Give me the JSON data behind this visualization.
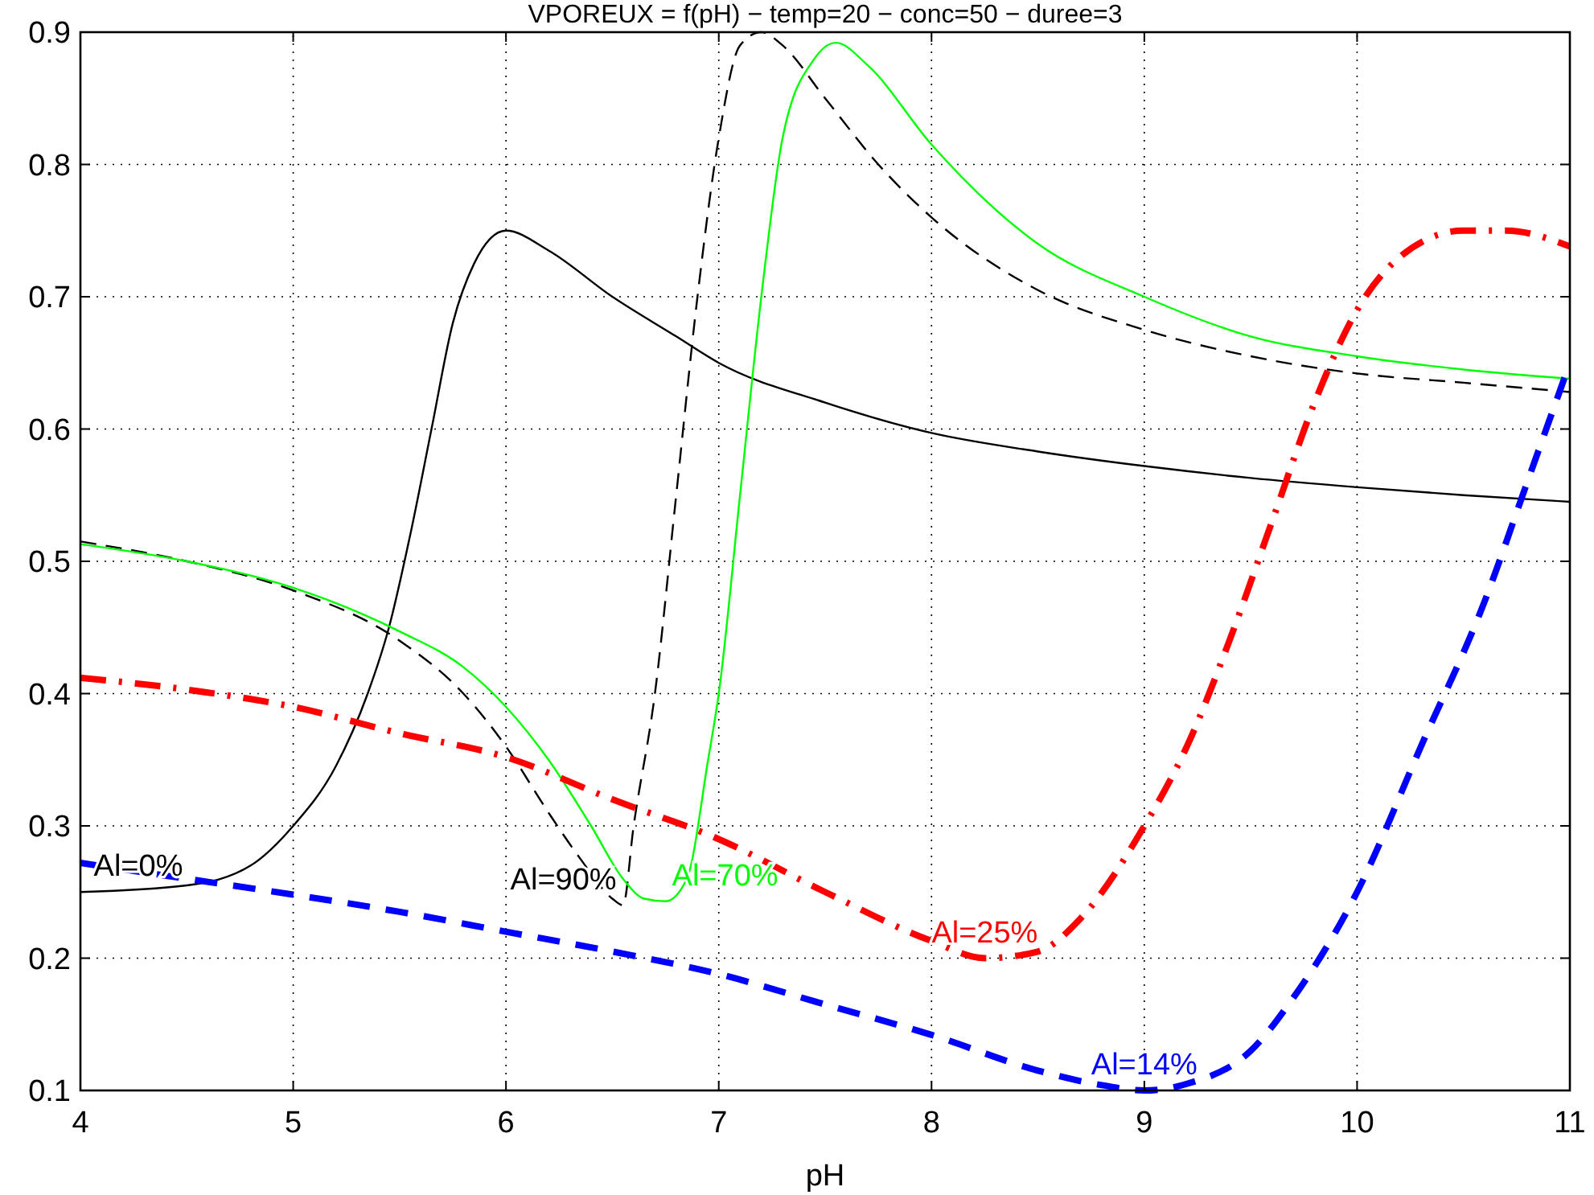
{
  "chart_data": {
    "type": "line",
    "title": "VPOREUX = f(pH) − temp=20 − conc=50 − duree=3",
    "xlabel": "pH",
    "xlim": [
      4,
      11
    ],
    "xticks": [
      4,
      5,
      6,
      7,
      8,
      9,
      10,
      11
    ],
    "ylim": [
      0.1,
      0.9
    ],
    "yticks": [
      0.1,
      0.2,
      0.3,
      0.4,
      0.5,
      0.6,
      0.7,
      0.8,
      0.9
    ],
    "grid": true,
    "marker": "none",
    "series": [
      {
        "color": "#000000",
        "line_style": "solid",
        "x": [
          4,
          4.5,
          4.8,
          5,
          5.2,
          5.35,
          5.45,
          5.55,
          5.65,
          5.75,
          5.85,
          6,
          6.2,
          6.5,
          6.8,
          7,
          7.5,
          8,
          8.5,
          9,
          9.5,
          10,
          10.5,
          11
        ],
        "values": [
          0.25,
          0.255,
          0.27,
          0.3,
          0.345,
          0.4,
          0.45,
          0.52,
          0.6,
          0.68,
          0.725,
          0.75,
          0.735,
          0.7,
          0.67,
          0.65,
          0.62,
          0.597,
          0.583,
          0.572,
          0.563,
          0.556,
          0.55,
          0.545
        ]
      },
      {
        "color": "#000000",
        "line_style": "dashed",
        "x": [
          4,
          4.5,
          5,
          5.5,
          5.8,
          6,
          6.2,
          6.35,
          6.5,
          6.55,
          6.6,
          6.7,
          6.8,
          6.9,
          7,
          7.1,
          7.2,
          7.3,
          7.5,
          7.75,
          8,
          8.5,
          9,
          9.5,
          10,
          10.5,
          11
        ],
        "values": [
          0.515,
          0.5,
          0.478,
          0.44,
          0.4,
          0.36,
          0.31,
          0.275,
          0.245,
          0.24,
          0.3,
          0.4,
          0.55,
          0.7,
          0.82,
          0.89,
          0.9,
          0.89,
          0.85,
          0.8,
          0.76,
          0.705,
          0.675,
          0.655,
          0.642,
          0.635,
          0.628
        ]
      },
      {
        "color": "#00ff00",
        "line_style": "solid",
        "x": [
          4,
          4.5,
          5,
          5.5,
          5.8,
          6,
          6.2,
          6.4,
          6.55,
          6.65,
          6.75,
          6.85,
          6.95,
          7,
          7.1,
          7.2,
          7.3,
          7.45,
          7.55,
          7.7,
          8,
          8.5,
          9,
          9.5,
          10,
          10.5,
          11
        ],
        "values": [
          0.513,
          0.5,
          0.48,
          0.447,
          0.42,
          0.39,
          0.35,
          0.3,
          0.26,
          0.245,
          0.243,
          0.26,
          0.35,
          0.4,
          0.55,
          0.7,
          0.82,
          0.88,
          0.892,
          0.875,
          0.815,
          0.74,
          0.7,
          0.67,
          0.655,
          0.645,
          0.638
        ]
      },
      {
        "color": "#ff0000",
        "line_style": "dashdot",
        "x": [
          4,
          4.5,
          5,
          5.5,
          6,
          6.5,
          7,
          7.5,
          8,
          8.25,
          8.5,
          8.7,
          9,
          9.2,
          9.4,
          9.6,
          9.8,
          10,
          10.2,
          10.5,
          10.7,
          11
        ],
        "values": [
          0.412,
          0.403,
          0.39,
          0.37,
          0.352,
          0.32,
          0.29,
          0.25,
          0.213,
          0.2,
          0.205,
          0.23,
          0.3,
          0.36,
          0.44,
          0.53,
          0.62,
          0.69,
          0.73,
          0.75,
          0.75,
          0.738
        ]
      },
      {
        "color": "#0000ff",
        "line_style": "dashed",
        "x": [
          4,
          4.5,
          5,
          5.5,
          6,
          6.5,
          7,
          7.5,
          8,
          8.5,
          8.8,
          9,
          9.2,
          9.5,
          9.7,
          10,
          10.3,
          10.6,
          10.8,
          11
        ],
        "values": [
          0.272,
          0.26,
          0.248,
          0.235,
          0.22,
          0.205,
          0.188,
          0.165,
          0.142,
          0.115,
          0.104,
          0.1,
          0.105,
          0.13,
          0.17,
          0.25,
          0.36,
          0.47,
          0.56,
          0.65
        ]
      }
    ],
    "annotations": [
      {
        "text": "Al=0%",
        "x": 4,
        "y": 0.25
      },
      {
        "text": "Al=90%",
        "x": 6.55,
        "y": 0.24
      },
      {
        "text": "Al=70%",
        "x": 6.75,
        "y": 0.243
      },
      {
        "text": "Al=25%",
        "x": 8.25,
        "y": 0.2
      },
      {
        "text": "Al=14%",
        "x": 9,
        "y": 0.1
      }
    ]
  }
}
